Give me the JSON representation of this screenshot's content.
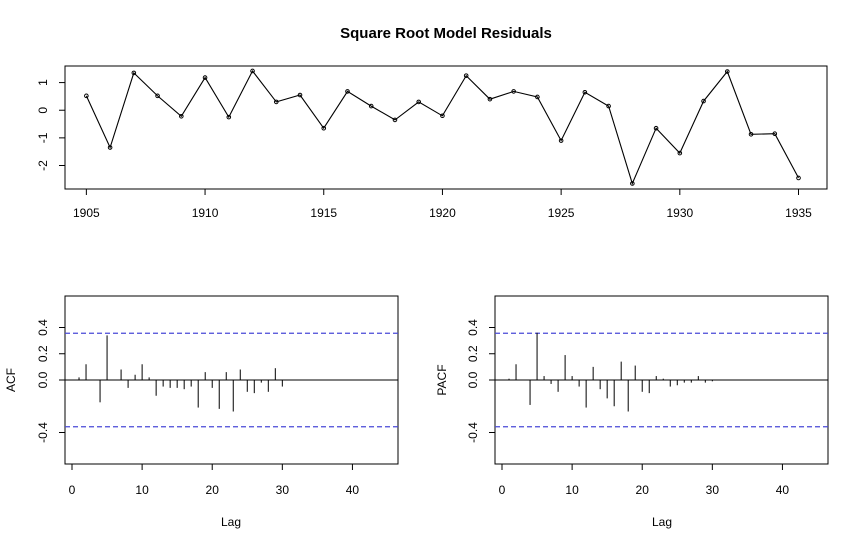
{
  "chart_data": [
    {
      "type": "line",
      "title": "Square Root Model Residuals",
      "xlabel": "",
      "ylabel": "",
      "x": [
        1905,
        1906,
        1907,
        1908,
        1909,
        1910,
        1911,
        1912,
        1913,
        1914,
        1915,
        1916,
        1917,
        1918,
        1919,
        1920,
        1921,
        1922,
        1923,
        1924,
        1925,
        1926,
        1927,
        1928,
        1929,
        1930,
        1931,
        1932,
        1933,
        1934,
        1935
      ],
      "values": [
        0.52,
        -1.35,
        1.35,
        0.52,
        -0.22,
        1.18,
        -0.25,
        1.42,
        0.3,
        0.55,
        -0.65,
        0.68,
        0.15,
        -0.35,
        0.3,
        -0.2,
        1.25,
        0.4,
        0.68,
        0.48,
        -1.1,
        0.65,
        0.15,
        -2.65,
        -0.65,
        -1.55,
        0.33,
        1.4,
        -0.87,
        -0.85,
        -2.45
      ],
      "xlim": [
        1904.1,
        1936.2
      ],
      "ylim": [
        -2.85,
        1.6
      ],
      "xticks": [
        "1905",
        "1910",
        "1915",
        "1920",
        "1925",
        "1930",
        "1935"
      ],
      "yticks": [
        "-2",
        "-1",
        "0",
        "1"
      ]
    },
    {
      "type": "bar",
      "xlabel": "Lag",
      "ylabel": "ACF",
      "lags": [
        1,
        2,
        3,
        4,
        5,
        6,
        7,
        8,
        9,
        10,
        11,
        12,
        13,
        14,
        15,
        16,
        17,
        18,
        19,
        20,
        21,
        22,
        23,
        24,
        25,
        26,
        27,
        28,
        29,
        30
      ],
      "values": [
        0.02,
        0.12,
        0.0,
        -0.17,
        0.34,
        0.0,
        0.08,
        -0.06,
        0.04,
        0.12,
        0.02,
        -0.12,
        -0.05,
        -0.06,
        -0.06,
        -0.07,
        -0.05,
        -0.21,
        0.06,
        -0.06,
        -0.22,
        0.06,
        -0.24,
        0.08,
        -0.09,
        -0.1,
        -0.02,
        -0.09,
        0.09,
        -0.05
      ],
      "conf_limit": 0.356,
      "xlim": [
        -1,
        46.5
      ],
      "ylim": [
        -0.64,
        0.64
      ],
      "xticks": [
        "0",
        "10",
        "20",
        "30",
        "40"
      ],
      "yticks": [
        "-0.4",
        "0.0",
        "0.2",
        "0.4"
      ]
    },
    {
      "type": "bar",
      "xlabel": "Lag",
      "ylabel": "PACF",
      "lags": [
        1,
        2,
        3,
        4,
        5,
        6,
        7,
        8,
        9,
        10,
        11,
        12,
        13,
        14,
        15,
        16,
        17,
        18,
        19,
        20,
        21,
        22,
        23,
        24,
        25,
        26,
        27,
        28,
        29,
        30
      ],
      "values": [
        0.01,
        0.12,
        0.0,
        -0.19,
        0.36,
        0.03,
        -0.03,
        -0.09,
        0.19,
        0.03,
        -0.05,
        -0.21,
        0.1,
        -0.07,
        -0.14,
        -0.2,
        0.14,
        -0.24,
        0.11,
        -0.09,
        -0.1,
        0.03,
        0.01,
        -0.05,
        -0.04,
        -0.02,
        -0.02,
        0.03,
        -0.02,
        -0.01
      ],
      "conf_limit": 0.356,
      "xlim": [
        -1,
        46.5
      ],
      "ylim": [
        -0.64,
        0.64
      ],
      "xticks": [
        "0",
        "10",
        "20",
        "30",
        "40"
      ],
      "yticks": [
        "-0.4",
        "0.0",
        "0.2",
        "0.4"
      ]
    }
  ],
  "colors": {
    "ci_line": "#4a4ad8",
    "ink": "#000000"
  }
}
